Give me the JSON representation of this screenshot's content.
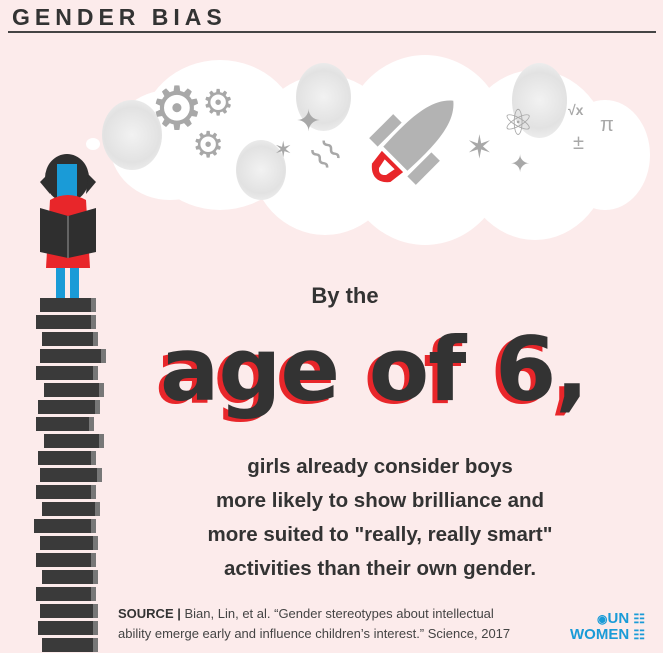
{
  "header": {
    "title": "GENDER BIAS"
  },
  "thought_icons": [
    "gears-icon",
    "sparkle-icon",
    "dna-icon",
    "rocket-icon",
    "atom-icon",
    "sqrt-x-icon",
    "pi-icon",
    "plus-minus-icon"
  ],
  "math_symbols": {
    "sqrt": "√x",
    "pi": "π",
    "plusminus": "±"
  },
  "headline": {
    "lead": "By the",
    "big": "age of 6,"
  },
  "body_lines": [
    "girls already consider boys",
    "more likely to show brilliance and",
    "more suited to \"really, really smart\"",
    "activities than their own gender."
  ],
  "source": {
    "label": "SOURCE |",
    "text_line1": "Bian, Lin, et al. “Gender stereotypes about intellectual",
    "text_line2": "ability emerge early and influence children’s interest.” Science, 2017"
  },
  "logo": {
    "line1": "UN",
    "line2": "WOMEN"
  },
  "colors": {
    "background": "#fcebeb",
    "accent_red": "#e8262a",
    "girl_blue": "#1a9bd7",
    "text": "#333333",
    "logo_blue": "#1a9bd7"
  }
}
